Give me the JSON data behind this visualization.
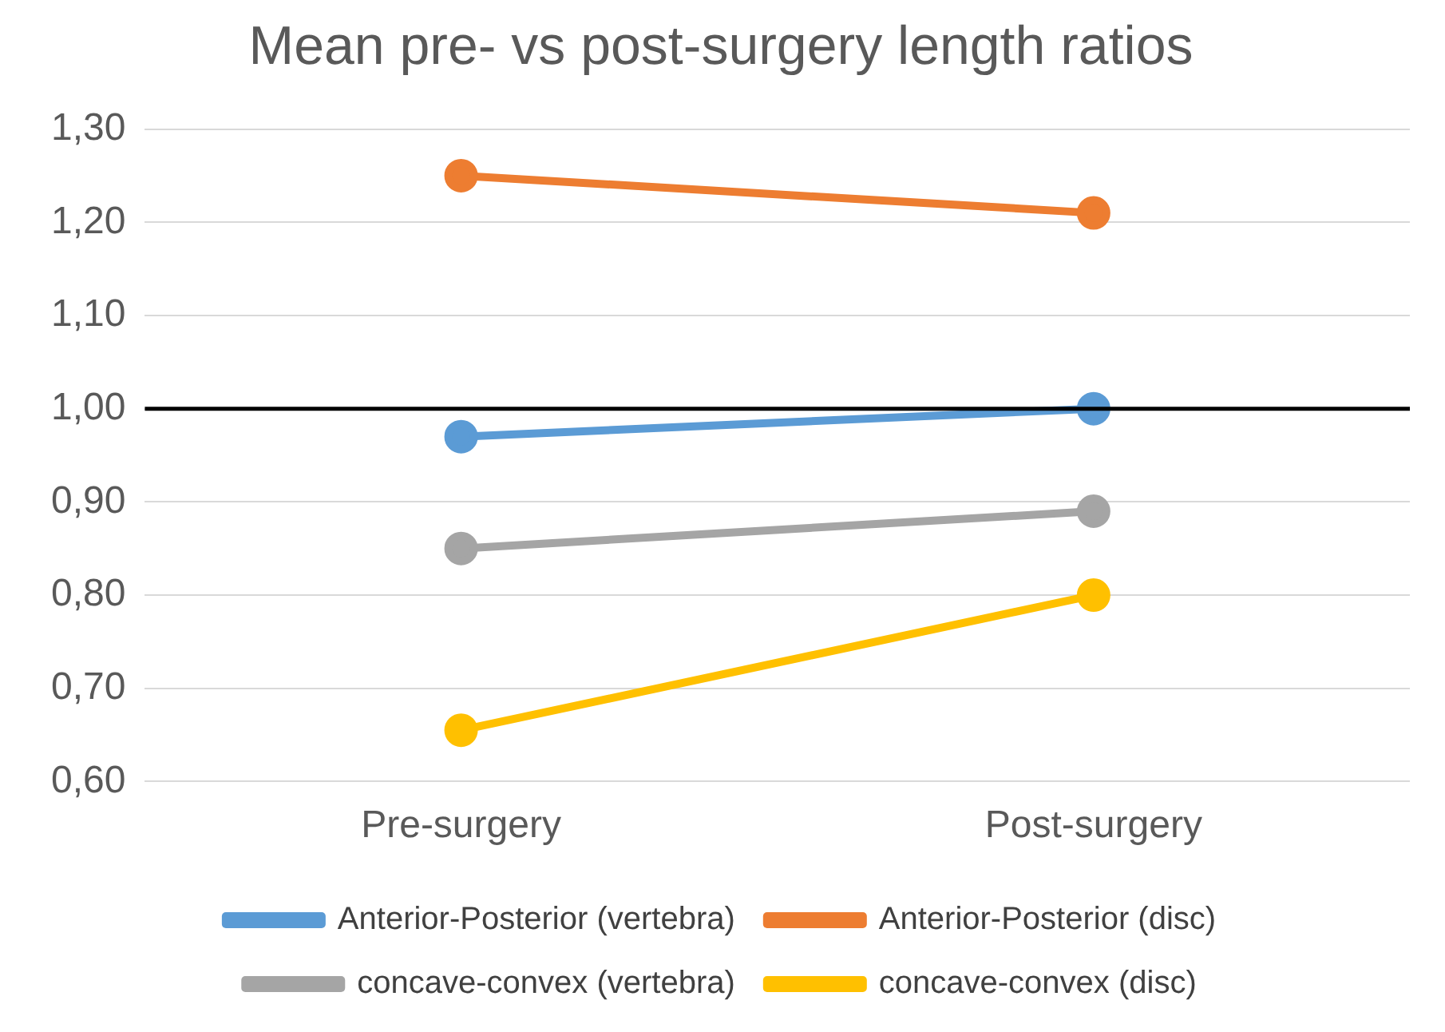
{
  "chart_data": {
    "type": "line",
    "title": "Mean pre- vs post-surgery length ratios",
    "categories": [
      "Pre-surgery",
      "Post-surgery"
    ],
    "series": [
      {
        "name": "Anterior-Posterior (vertebra)",
        "color": "#5b9bd5",
        "values": [
          0.97,
          1.0
        ]
      },
      {
        "name": "Anterior-Posterior (disc)",
        "color": "#ed7d31",
        "values": [
          1.25,
          1.21
        ]
      },
      {
        "name": "concave-convex (vertebra)",
        "color": "#a5a5a5",
        "values": [
          0.85,
          0.89
        ]
      },
      {
        "name": "concave-convex (disc)",
        "color": "#ffc000",
        "values": [
          0.655,
          0.8
        ]
      }
    ],
    "ylim": [
      0.6,
      1.3
    ],
    "yticks": [
      {
        "value": 0.6,
        "label": "0,60"
      },
      {
        "value": 0.7,
        "label": "0,70"
      },
      {
        "value": 0.8,
        "label": "0,80"
      },
      {
        "value": 0.9,
        "label": "0,90"
      },
      {
        "value": 1.0,
        "label": "1,00"
      },
      {
        "value": 1.1,
        "label": "1,10"
      },
      {
        "value": 1.2,
        "label": "1,20"
      },
      {
        "value": 1.3,
        "label": "1,30"
      }
    ],
    "ref_lines": [
      {
        "axis": "y",
        "value": 1.0,
        "color": "#000000"
      }
    ],
    "grid": "y",
    "legend": "bottom",
    "marker": "circle",
    "line_style": "solid"
  }
}
